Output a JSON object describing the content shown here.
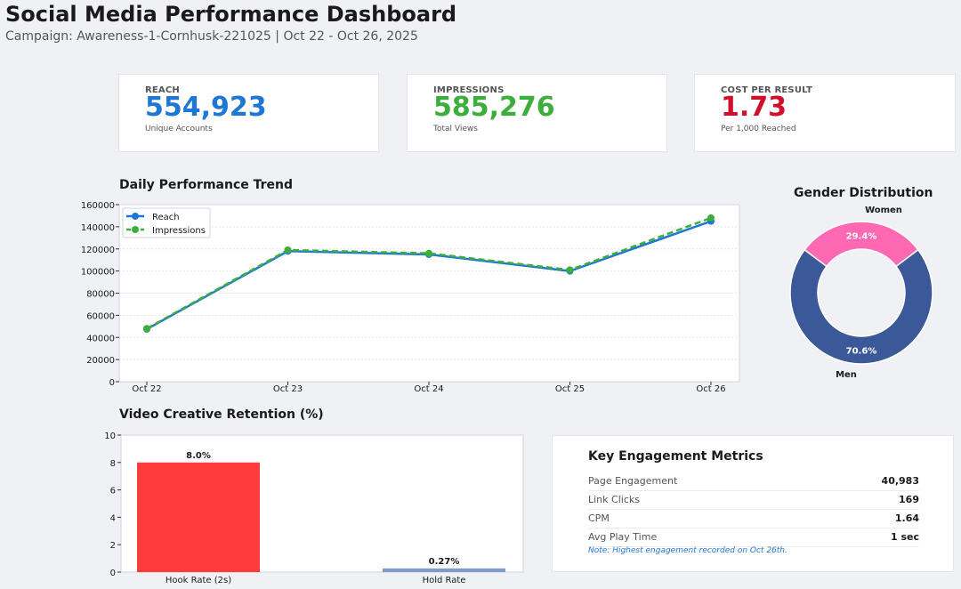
{
  "header": {
    "title": "Social Media Performance Dashboard",
    "subtitle": "Campaign: Awareness-1-Cornhusk-221025 | Oct 22 - Oct 26, 2025"
  },
  "kpis": [
    {
      "label": "REACH",
      "value": "554,923",
      "sub": "Unique Accounts",
      "color": "#1f77d4"
    },
    {
      "label": "IMPRESSIONS",
      "value": "585,276",
      "sub": "Total Views",
      "color": "#3cae3c"
    },
    {
      "label": "COST PER RESULT",
      "value": "1.73",
      "sub": "Per 1,000 Reached",
      "color": "#d0102a"
    }
  ],
  "trend": {
    "title": "Daily Performance Trend"
  },
  "gender": {
    "title": "Gender Distribution"
  },
  "retention": {
    "title": "Video Creative Retention (%)"
  },
  "metrics": {
    "title": "Key Engagement Metrics",
    "rows": [
      {
        "label": "Page Engagement",
        "value": "40,983"
      },
      {
        "label": "Link Clicks",
        "value": "169"
      },
      {
        "label": "CPM",
        "value": "1.64"
      },
      {
        "label": "Avg Play Time",
        "value": "1 sec"
      }
    ],
    "note": "Note: Highest engagement recorded on Oct 26th."
  },
  "chart_data": [
    {
      "type": "line",
      "title": "Daily Performance Trend",
      "categories": [
        "Oct 22",
        "Oct 23",
        "Oct 24",
        "Oct 25",
        "Oct 26"
      ],
      "ylim": [
        0,
        160000
      ],
      "yticks": [
        0,
        20000,
        40000,
        60000,
        80000,
        100000,
        120000,
        140000,
        160000
      ],
      "grid": true,
      "legend": "top-left",
      "series": [
        {
          "name": "Reach",
          "values": [
            47500,
            118000,
            115000,
            100000,
            145000
          ],
          "color": "#1f77d4",
          "dash": false
        },
        {
          "name": "Impressions",
          "values": [
            48000,
            119000,
            116000,
            101000,
            148000
          ],
          "color": "#3cae3c",
          "dash": true
        }
      ]
    },
    {
      "type": "pie",
      "title": "Gender Distribution",
      "slices": [
        {
          "name": "Women",
          "value": 29.4,
          "label": "29.4%",
          "color": "#ff69b4"
        },
        {
          "name": "Men",
          "value": 70.6,
          "label": "70.6%",
          "color": "#3b5998"
        }
      ]
    },
    {
      "type": "bar",
      "title": "Video Creative Retention (%)",
      "categories": [
        "Hook Rate (2s)",
        "Hold Rate"
      ],
      "values": [
        8.0,
        0.27
      ],
      "labels": [
        "8.0%",
        "0.27%"
      ],
      "colors": [
        "#ff3b3b",
        "#7f9cc8"
      ],
      "ylim": [
        0,
        10
      ],
      "yticks": [
        0,
        2,
        4,
        6,
        8,
        10
      ]
    }
  ]
}
